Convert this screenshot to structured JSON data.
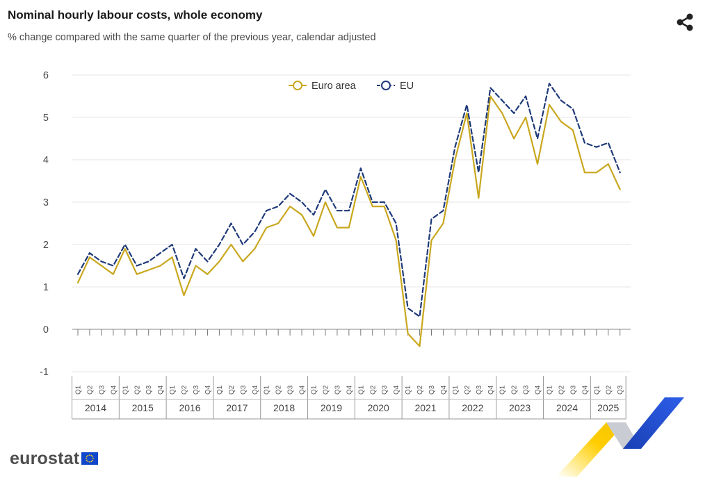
{
  "header": {
    "title": "Nominal hourly labour costs, whole economy",
    "subtitle": "% change compared with the same quarter of the previous year, calendar adjusted",
    "share_icon": "share-icon"
  },
  "logo": {
    "text": "eurostat",
    "flag_icon": "eu-flag-icon"
  },
  "colors": {
    "euro_area": "#c9a71e",
    "eu": "#1f3a7a",
    "grid": "#e6e6e6",
    "axis": "#888888"
  },
  "chart_data": {
    "type": "line",
    "ylim": [
      -1,
      6
    ],
    "yticks": [
      "-1",
      "0",
      "1",
      "2",
      "3",
      "4",
      "5",
      "6"
    ],
    "grid": true,
    "legend_position": "top-center",
    "quarter_labels": [
      "Q1",
      "Q2",
      "Q3",
      "Q4"
    ],
    "years": [
      {
        "label": "2014",
        "quarters": 4
      },
      {
        "label": "2015",
        "quarters": 4
      },
      {
        "label": "2016",
        "quarters": 4
      },
      {
        "label": "2017",
        "quarters": 4
      },
      {
        "label": "2018",
        "quarters": 4
      },
      {
        "label": "2019",
        "quarters": 4
      },
      {
        "label": "2020",
        "quarters": 4
      },
      {
        "label": "2021",
        "quarters": 4
      },
      {
        "label": "2022",
        "quarters": 4
      },
      {
        "label": "2023",
        "quarters": 4
      },
      {
        "label": "2024",
        "quarters": 4
      },
      {
        "label": "2025",
        "quarters": 3
      }
    ],
    "series": [
      {
        "name": "Euro area",
        "style": "solid",
        "values": [
          1.1,
          1.7,
          1.5,
          1.3,
          1.9,
          1.3,
          1.4,
          1.5,
          1.7,
          0.8,
          1.5,
          1.3,
          1.6,
          2.0,
          1.6,
          1.9,
          2.4,
          2.5,
          2.9,
          2.7,
          2.2,
          3.0,
          2.4,
          2.4,
          3.6,
          2.9,
          2.9,
          2.1,
          -0.1,
          -0.4,
          2.1,
          2.5,
          4.0,
          5.1,
          3.1,
          5.5,
          5.1,
          4.5,
          5.0,
          3.9,
          5.3,
          4.9,
          4.7,
          3.7,
          3.7,
          3.9,
          3.3
        ]
      },
      {
        "name": "EU",
        "style": "dashed",
        "values": [
          1.3,
          1.8,
          1.6,
          1.5,
          2.0,
          1.5,
          1.6,
          1.8,
          2.0,
          1.2,
          1.9,
          1.6,
          2.0,
          2.5,
          2.0,
          2.3,
          2.8,
          2.9,
          3.2,
          3.0,
          2.7,
          3.3,
          2.8,
          2.8,
          3.8,
          3.0,
          3.0,
          2.5,
          0.5,
          0.3,
          2.6,
          2.8,
          4.3,
          5.3,
          3.7,
          5.7,
          5.4,
          5.1,
          5.5,
          4.5,
          5.8,
          5.4,
          5.2,
          4.4,
          4.3,
          4.4,
          3.7
        ]
      }
    ]
  }
}
